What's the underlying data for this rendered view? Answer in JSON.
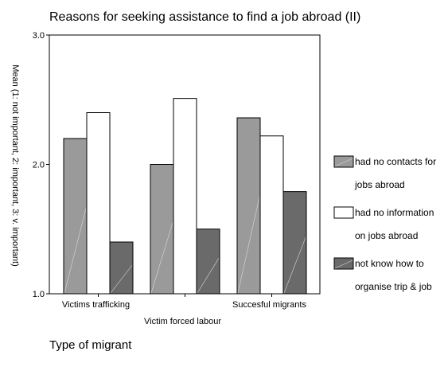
{
  "chart_data": {
    "type": "bar",
    "title": "Reasons for seeking assistance to find a job abroad (II)",
    "ylabel": "Mean (1: not important, 2: important, 3: v. important)",
    "xlabel": "",
    "ylim": [
      1.0,
      3.0
    ],
    "yticks": [
      "1.0",
      "2.0",
      "3.0"
    ],
    "categories": [
      "Victims trafficking",
      "Victim forced labour",
      "Succesful migrants"
    ],
    "series": [
      {
        "name": "had no contacts for jobs abroad",
        "legend_lines": [
          "had no contacts for",
          "jobs abroad"
        ],
        "values": [
          2.2,
          2.0,
          2.36
        ],
        "color": "#9a9a9a"
      },
      {
        "name": "had no information on jobs abroad",
        "legend_lines": [
          "had no information",
          "on jobs abroad"
        ],
        "values": [
          2.4,
          2.51,
          2.22
        ],
        "color": "#ffffff"
      },
      {
        "name": "not know how to organise trip & job",
        "legend_lines": [
          "not know how to",
          "organise trip & job"
        ],
        "values": [
          1.4,
          1.5,
          1.79
        ],
        "color": "#6a6a6a"
      }
    ],
    "legend_position": "right",
    "grid": false
  },
  "footer": {
    "text": "Type of migrant"
  }
}
